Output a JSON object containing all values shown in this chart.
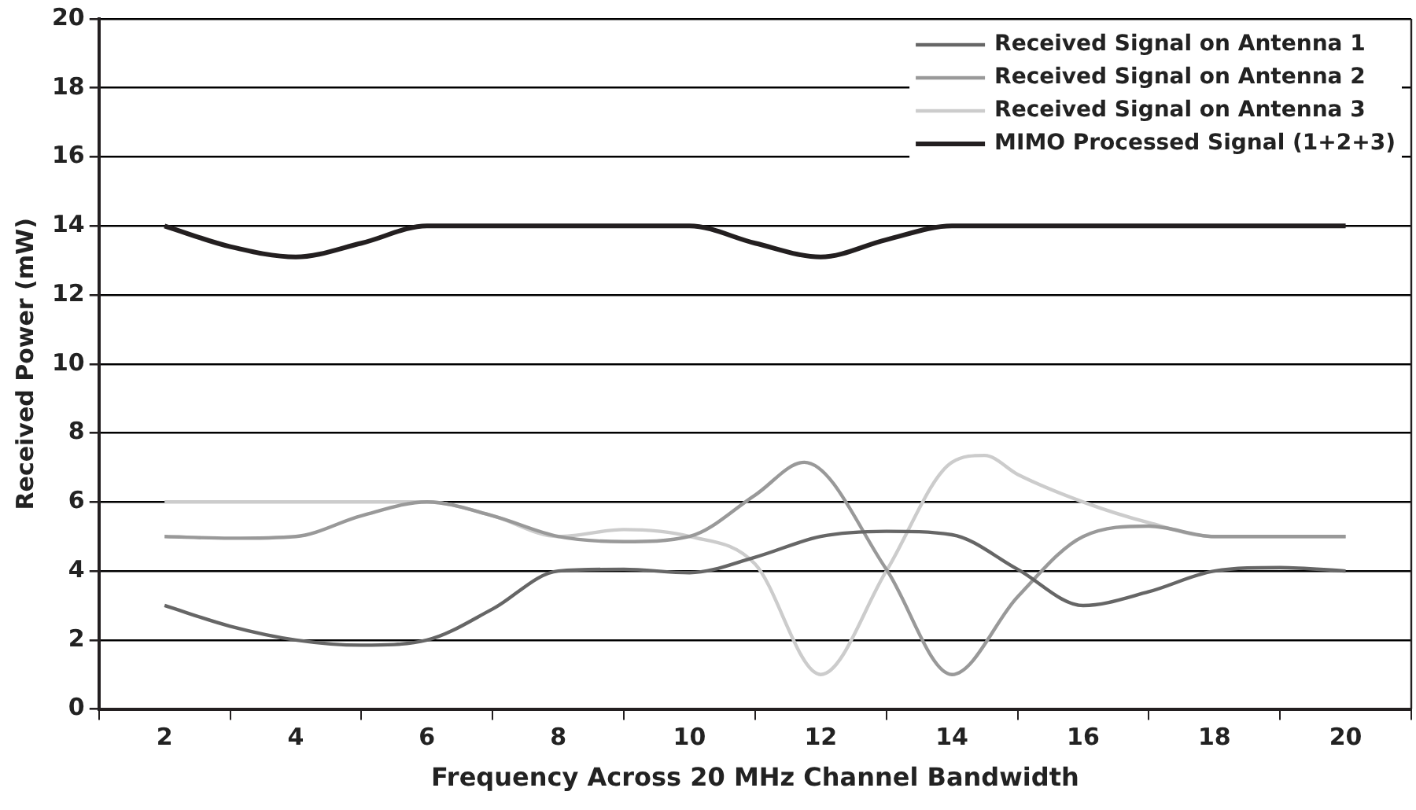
{
  "chart_data": {
    "type": "line",
    "xlabel": "Frequency Across 20 MHz Channel Bandwidth",
    "ylabel": "Received Power (mW)",
    "x": [
      2,
      3,
      4,
      5,
      6,
      7,
      8,
      9,
      10,
      11,
      12,
      13,
      14,
      15,
      16,
      17,
      18,
      19,
      20
    ],
    "series": [
      {
        "name": "Received Signal on Antenna 1",
        "color": "#666666",
        "values": [
          3.0,
          2.4,
          2.0,
          1.85,
          2.0,
          2.9,
          4.0,
          4.05,
          3.95,
          4.4,
          5.0,
          5.15,
          5.05,
          4.05,
          3.0,
          3.4,
          4.0,
          4.1,
          4.0
        ]
      },
      {
        "name": "Received Signal on Antenna 2",
        "color": "#999999",
        "x": [
          2,
          3,
          4,
          5,
          6,
          7,
          8,
          9,
          10,
          11,
          11.75,
          13,
          14,
          15,
          16,
          17,
          18,
          19,
          20
        ],
        "values": [
          5.0,
          4.95,
          5.0,
          5.6,
          6.0,
          5.6,
          5.0,
          4.85,
          5.0,
          6.2,
          7.15,
          4.05,
          1.0,
          3.25,
          5.0,
          5.3,
          5.0,
          5.0,
          5.0
        ]
      },
      {
        "name": "Received Signal on Antenna 3",
        "color": "#cccccc",
        "x": [
          2,
          3,
          4,
          5,
          6,
          7,
          8,
          9,
          10,
          11,
          12,
          13,
          14,
          14.5,
          15,
          16,
          17,
          18,
          19,
          20
        ],
        "values": [
          6.0,
          6.0,
          6.0,
          6.0,
          6.0,
          5.6,
          5.0,
          5.2,
          5.0,
          4.2,
          1.0,
          4.0,
          7.15,
          7.35,
          6.8,
          6.0,
          5.4,
          5.0,
          5.0,
          5.0
        ]
      },
      {
        "name": "MIMO Processed Signal (1+2+3)",
        "color": "#231f20",
        "values": [
          14,
          13.4,
          13.1,
          13.5,
          14,
          14,
          14,
          14,
          14,
          13.5,
          13.1,
          13.6,
          14,
          14,
          14,
          14,
          14,
          14,
          14
        ]
      }
    ],
    "xlim": [
      1,
      21
    ],
    "xticks": [
      {
        "value": 1,
        "label": null
      },
      2,
      {
        "value": 3,
        "label": null
      },
      4,
      {
        "value": 5,
        "label": null
      },
      6,
      {
        "value": 7,
        "label": null
      },
      8,
      {
        "value": 9,
        "label": null
      },
      10,
      {
        "value": 11,
        "label": null
      },
      12,
      {
        "value": 13,
        "label": null
      },
      14,
      {
        "value": 15,
        "label": null
      },
      16,
      {
        "value": 17,
        "label": null
      },
      18,
      {
        "value": 19,
        "label": null
      },
      20,
      {
        "value": 21,
        "label": null
      }
    ],
    "ylim": [
      0,
      20
    ],
    "yticks": [
      0,
      2,
      4,
      6,
      8,
      10,
      12,
      14,
      16,
      18,
      20
    ],
    "grid": "y",
    "legend": "top right",
    "marker": "none",
    "line_style": "solid"
  }
}
